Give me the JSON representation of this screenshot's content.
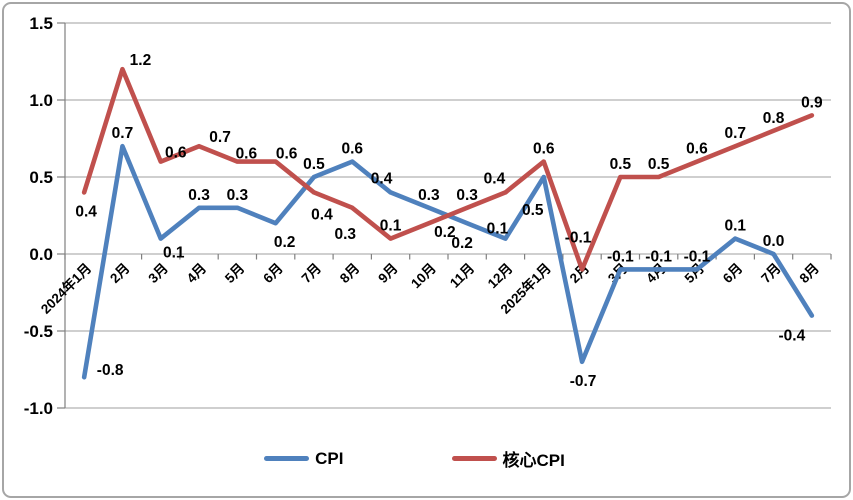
{
  "chart_data": {
    "type": "line",
    "title": "",
    "xlabel": "",
    "ylabel": "",
    "categories": [
      "2024年1月",
      "2月",
      "3月",
      "4月",
      "5月",
      "6月",
      "7月",
      "8月",
      "9月",
      "10月",
      "11月",
      "12月",
      "2025年1月",
      "2月",
      "3月",
      "4月",
      "5月",
      "6月",
      "7月",
      "8月"
    ],
    "series": [
      {
        "name": "CPI",
        "color": "#4F81BD",
        "values": [
          -0.8,
          0.7,
          0.1,
          0.3,
          0.3,
          0.2,
          0.5,
          0.6,
          0.4,
          0.3,
          0.2,
          0.1,
          0.5,
          -0.7,
          -0.1,
          -0.1,
          -0.1,
          0.1,
          0.0,
          -0.4
        ],
        "labels": [
          "-0.8",
          "0.7",
          "0.1",
          "0.3",
          "0.3",
          "0.2",
          "0.5",
          "0.6",
          "0.4",
          "0.3",
          "0.2",
          "0.1",
          "0.5",
          "-0.7",
          "-0.1",
          "-0.1",
          "-0.1",
          "0.1",
          "0.0",
          "-0.4"
        ]
      },
      {
        "name": "核心CPI",
        "color": "#C0504D",
        "values": [
          0.4,
          1.2,
          0.6,
          0.7,
          0.6,
          0.6,
          0.4,
          0.3,
          0.1,
          0.2,
          0.3,
          0.4,
          0.6,
          -0.1,
          0.5,
          0.5,
          0.6,
          0.7,
          0.8,
          0.9
        ],
        "labels": [
          "0.4",
          "1.2",
          "0.6",
          "0.7",
          "0.6",
          "0.6",
          "0.4",
          "0.3",
          "0.1",
          "0.2",
          "0.3",
          "0.4",
          "0.6",
          "-0.1",
          "0.5",
          "0.5",
          "0.6",
          "0.7",
          "0.8",
          "0.9"
        ]
      }
    ],
    "ylim": [
      -1.0,
      1.5
    ],
    "y_ticks": [
      "1.5",
      "1.0",
      "0.5",
      "0.0",
      "-0.5",
      "-1.0"
    ],
    "grid": true,
    "legend_position": "bottom",
    "axis_color": "#808080",
    "grid_color": "#b2b2b2",
    "data_label_color": "#000000",
    "label_offset_hints": {
      "0:0": [
        26,
        -2
      ],
      "0:2": [
        13,
        19
      ],
      "0:5": [
        9,
        24
      ],
      "0:8": [
        -9,
        -9
      ],
      "0:10": [
        -5,
        25
      ],
      "0:11": [
        -8,
        -5
      ],
      "0:12": [
        -11,
        38
      ],
      "0:13": [
        1,
        24
      ],
      "0:19": [
        -20,
        25
      ],
      "1:0": [
        2,
        24
      ],
      "1:1": [
        18,
        -4
      ],
      "1:2": [
        15,
        -4
      ],
      "1:3": [
        21,
        -4
      ],
      "1:4": [
        9,
        -3
      ],
      "1:5": [
        11,
        -3
      ],
      "1:6": [
        8,
        27
      ],
      "1:7": [
        -7,
        31
      ],
      "1:9": [
        16,
        14
      ],
      "1:11": [
        -11,
        -9
      ],
      "1:13": [
        -4,
        -27
      ]
    }
  }
}
